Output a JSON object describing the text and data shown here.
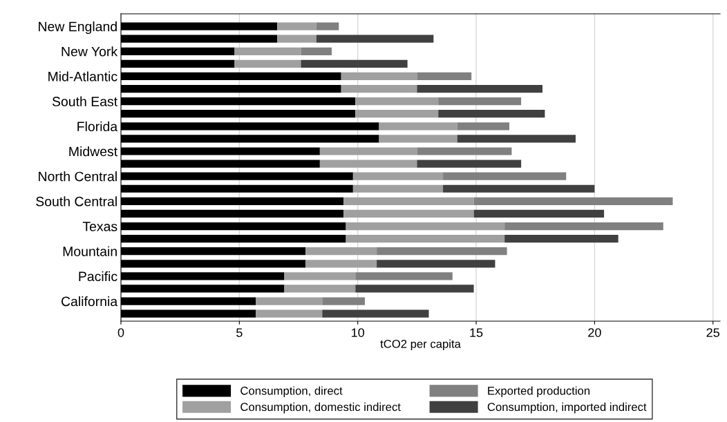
{
  "chart_data": {
    "type": "bar",
    "orientation": "horizontal",
    "stacked": true,
    "xlabel": "tCO2 per capita",
    "categories": [
      "New England",
      null,
      "New York",
      null,
      "Mid-Atlantic",
      null,
      "South East",
      null,
      "Florida",
      null,
      "Midwest",
      null,
      "North Central",
      null,
      "South Central",
      null,
      "Texas",
      null,
      "Mountain",
      null,
      "Pacific",
      null,
      "California",
      null
    ],
    "series": [
      {
        "name": "Consumption, direct",
        "color": "#000000",
        "values": [
          6.6,
          6.6,
          4.8,
          4.8,
          9.3,
          9.3,
          9.9,
          9.9,
          10.9,
          10.9,
          8.4,
          8.4,
          9.8,
          9.8,
          9.4,
          9.4,
          9.5,
          9.5,
          7.8,
          7.8,
          6.9,
          6.9,
          5.7,
          5.7
        ]
      },
      {
        "name": "Consumption, domestic indirect",
        "color": "#a0a0a0",
        "values": [
          1.65,
          1.65,
          2.8,
          2.8,
          3.2,
          3.2,
          3.5,
          3.5,
          3.3,
          3.3,
          4.1,
          4.1,
          3.8,
          3.8,
          5.5,
          5.5,
          6.7,
          6.7,
          3.0,
          3.0,
          3.0,
          3.0,
          2.8,
          2.8
        ]
      },
      {
        "name": "Exported production",
        "color": "#808080",
        "values": [
          0.95,
          null,
          1.3,
          null,
          2.3,
          null,
          3.5,
          null,
          2.2,
          null,
          4.0,
          null,
          5.2,
          null,
          8.4,
          null,
          6.7,
          null,
          5.5,
          null,
          4.1,
          null,
          1.8,
          null
        ]
      },
      {
        "name": "Consumption, imported indirect",
        "color": "#404040",
        "values": [
          null,
          4.95,
          null,
          4.5,
          null,
          5.3,
          null,
          4.5,
          null,
          5.0,
          null,
          4.4,
          null,
          6.4,
          null,
          5.5,
          null,
          4.8,
          null,
          5.0,
          null,
          5.0,
          null,
          4.5
        ]
      }
    ],
    "xlim": [
      0,
      25.3
    ],
    "xticks": [
      0,
      5,
      10,
      15,
      20,
      25
    ],
    "grid": "x",
    "legend": "bottom"
  }
}
